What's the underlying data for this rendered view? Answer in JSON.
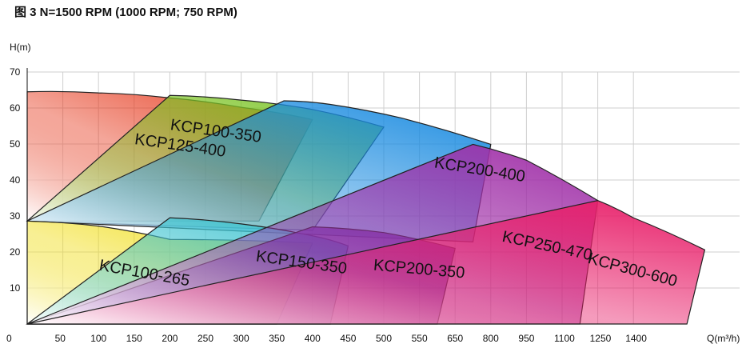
{
  "title": "图 3 N=1500 RPM (1000 RPM; 750 RPM)",
  "chart_data": {
    "type": "area",
    "ylabel": "H(m)",
    "xlabel": "Q(m³/h)",
    "ylim": [
      0,
      70
    ],
    "yticks": [
      10,
      20,
      30,
      40,
      50,
      60,
      70
    ],
    "xticks": [
      "0",
      "50",
      "100",
      "150",
      "200",
      "250",
      "300",
      "350",
      "400",
      "450",
      "500",
      "550",
      "650",
      "800",
      "950",
      "1100",
      "1250",
      "1400"
    ],
    "grid": true,
    "series": [
      {
        "name": "KCP100-350",
        "label_angle": 8,
        "color": "#e63a1e",
        "label_at": [
          4,
          54
        ],
        "top": [
          [
            0,
            64.5
          ],
          [
            2,
            64.2
          ],
          [
            4,
            62.8
          ],
          [
            6,
            60.2
          ],
          [
            8,
            56.8
          ]
        ],
        "bottom_left": [
          0,
          28.6
        ],
        "bottom_right": [
          6.5,
          28.6
        ]
      },
      {
        "name": "KCP125-400",
        "label_angle": 8,
        "color": "#7cc426",
        "label_at": [
          3,
          50
        ],
        "top": [
          [
            4,
            63.5
          ],
          [
            6,
            62.2
          ],
          [
            8,
            59.6
          ],
          [
            10,
            54.7
          ]
        ],
        "bottom_left": [
          0,
          28.6
        ],
        "bottom_right": [
          8,
          26.0
        ]
      },
      {
        "name": "KCP200-400",
        "label_angle": 9,
        "color": "#1a8be0",
        "label_at": [
          11.4,
          43.5
        ],
        "top": [
          [
            7.2,
            62.0
          ],
          [
            8.5,
            61.0
          ],
          [
            10.5,
            57.2
          ],
          [
            13,
            49.9
          ]
        ],
        "bottom_left": [
          0,
          28.6
        ],
        "bottom_right": [
          12.5,
          22.8
        ]
      },
      {
        "name": "KCP100-265",
        "label_angle": 10,
        "color": "#f0dc10",
        "label_at": [
          2.0,
          15
        ],
        "top": [
          [
            0,
            28.6
          ],
          [
            2,
            27.2
          ],
          [
            4,
            23.5
          ],
          [
            8,
            22.5
          ]
        ],
        "bottom_left": [
          0,
          0
        ],
        "bottom_right": [
          7.0,
          0
        ]
      },
      {
        "name": "KCP150-350",
        "label_angle": 8,
        "color": "#40c4d0",
        "label_at": [
          6.4,
          17.5
        ],
        "top": [
          [
            4,
            29.5
          ],
          [
            6,
            27.8
          ],
          [
            8,
            24.5
          ],
          [
            9,
            21.7
          ]
        ],
        "bottom_left": [
          0,
          0
        ],
        "bottom_right": [
          8.5,
          0
        ]
      },
      {
        "name": "KCP200-350",
        "label_angle": 5,
        "color": "#6a3aa8",
        "label_at": [
          9.7,
          15
        ],
        "top": [
          [
            8,
            27.0
          ],
          [
            10,
            25.4
          ],
          [
            12,
            21.0
          ]
        ],
        "bottom_left": [
          0,
          0
        ],
        "bottom_right": [
          11.5,
          0
        ]
      },
      {
        "name": "KCP250-470",
        "label_angle": 12,
        "color": "#a030a8",
        "label_at": [
          13.3,
          23
        ],
        "top": [
          [
            12.5,
            49.9
          ],
          [
            14,
            45.5
          ],
          [
            16,
            34.3
          ]
        ],
        "bottom_left": [
          0,
          0
        ],
        "bottom_right": [
          15.5,
          0
        ]
      },
      {
        "name": "KCP300-600",
        "label_angle": 15,
        "color": "#e8206a",
        "label_at": [
          15.7,
          17
        ],
        "top": [
          [
            16,
            34.3
          ],
          [
            17,
            29.5
          ],
          [
            19,
            20.6
          ]
        ],
        "bottom_left": [
          0,
          0
        ],
        "bottom_right": [
          18.5,
          0
        ]
      }
    ]
  }
}
